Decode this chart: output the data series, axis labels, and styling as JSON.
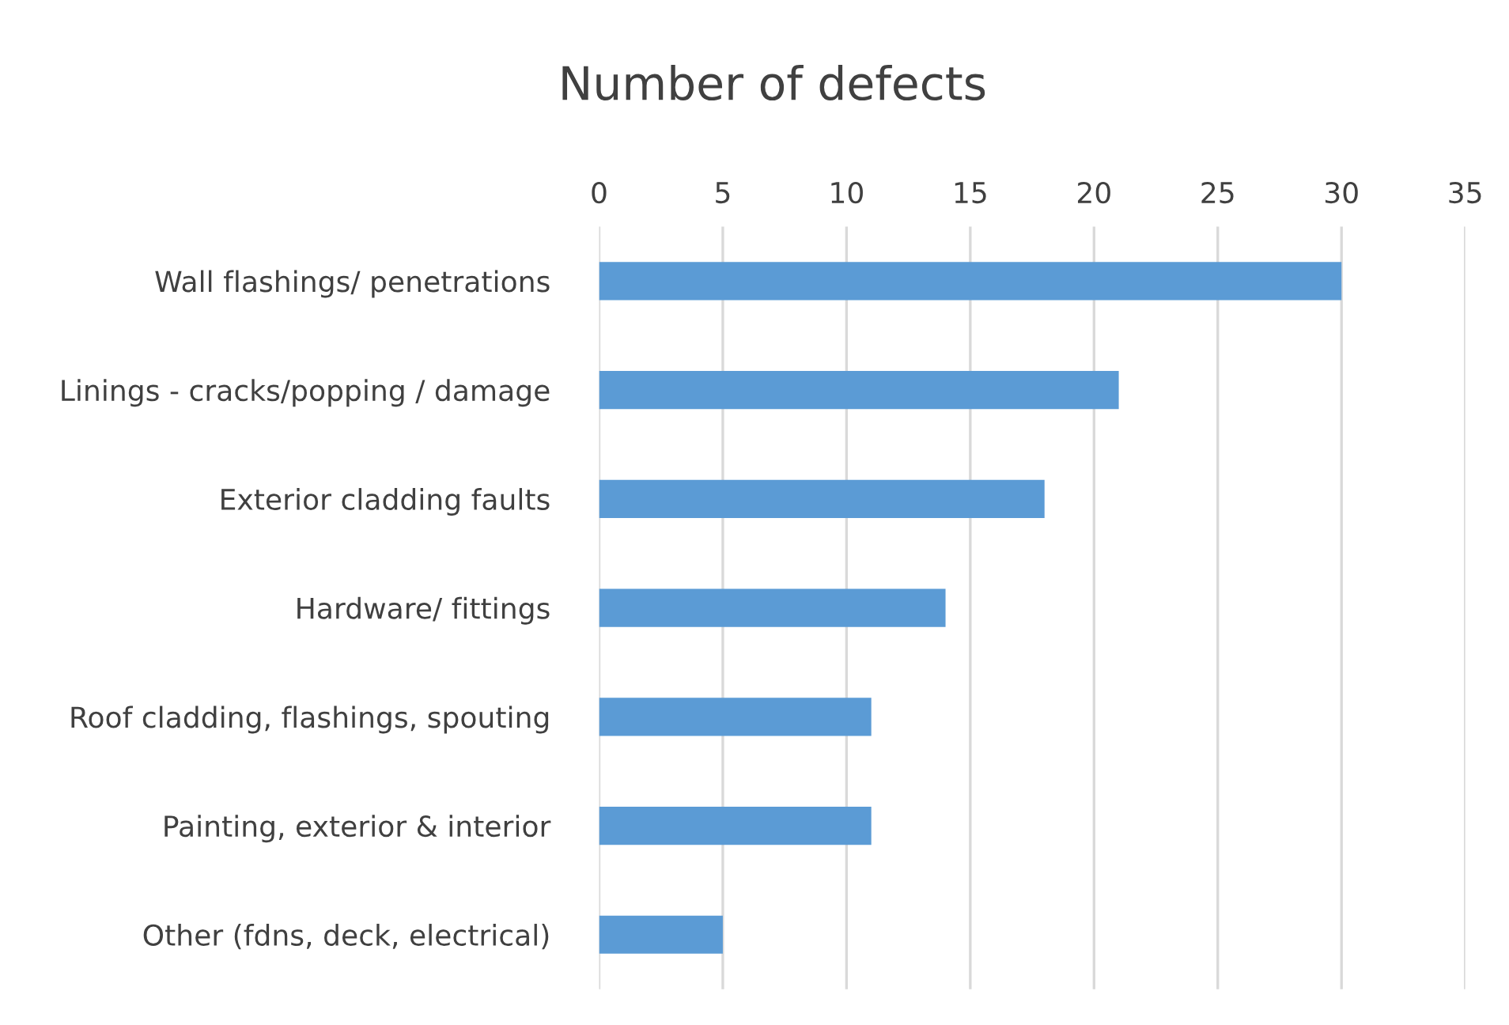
{
  "chart_data": {
    "type": "bar",
    "orientation": "horizontal",
    "title": "Number of defects",
    "categories": [
      "Wall flashings/ penetrations",
      "Linings - cracks/popping / damage",
      "Exterior cladding faults",
      "Hardware/ fittings",
      "Roof cladding, flashings, spouting",
      "Painting, exterior & interior",
      "Other (fdns, deck, electrical)"
    ],
    "values": [
      30,
      21,
      18,
      14,
      11,
      11,
      5
    ],
    "color": "#5b9bd5",
    "xlim": [
      0,
      35
    ],
    "xticks": [
      0,
      5,
      10,
      15,
      20,
      25,
      30,
      35
    ],
    "grid": "x",
    "legend": false
  }
}
